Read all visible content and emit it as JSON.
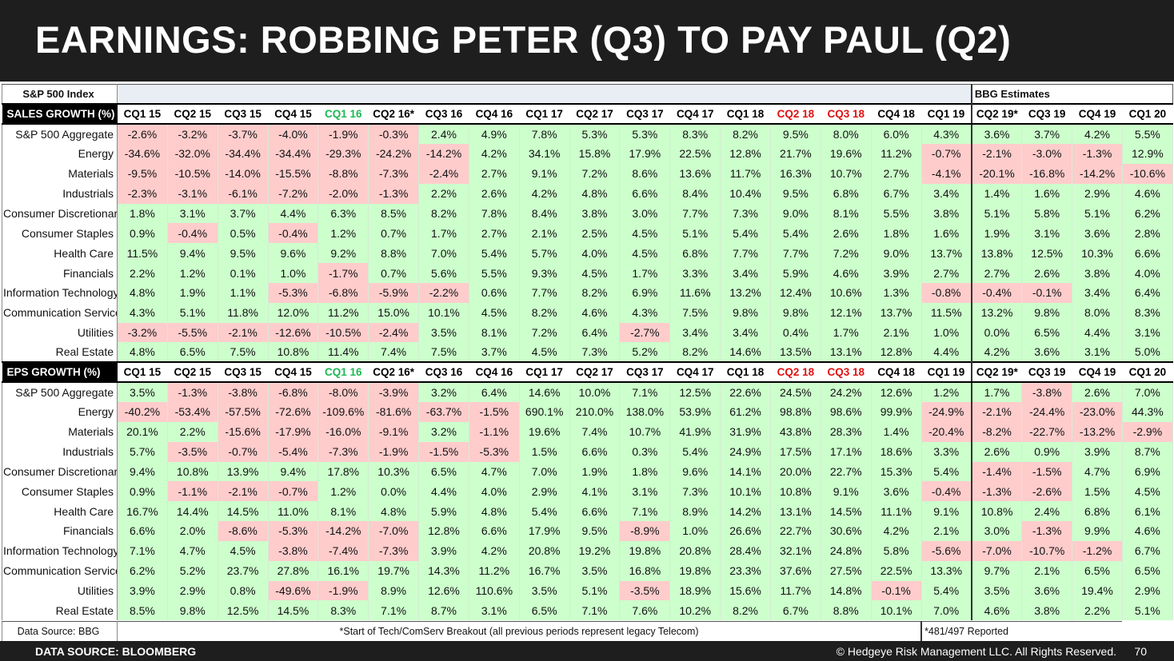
{
  "title": "EARNINGS: ROBBING PETER (Q3) TO PAY PAUL (Q2)",
  "index_label": "S&P 500 Index",
  "bbg_label": "BBG Estimates",
  "colors": {
    "positive": "#ccffcc",
    "negative": "#ffcccc",
    "header_green": "#1db954",
    "header_red": "#e01010"
  },
  "quarters": [
    "CQ1 15",
    "CQ2 15",
    "CQ3 15",
    "CQ4 15",
    "CQ1 16",
    "CQ2 16*",
    "CQ3 16",
    "CQ4 16",
    "CQ1 17",
    "CQ2 17",
    "CQ3 17",
    "CQ4 17",
    "CQ1 18",
    "CQ2 18",
    "CQ3 18",
    "CQ4 18",
    "CQ1 19",
    "CQ2 19*",
    "CQ3 19",
    "CQ4 19",
    "CQ1 20"
  ],
  "quarter_styles": [
    "",
    "",
    "",
    "",
    "g",
    "",
    "",
    "",
    "",
    "",
    "",
    "",
    "",
    "r",
    "r",
    "",
    "",
    "",
    "",
    "",
    ""
  ],
  "sections": [
    {
      "header": "SALES GROWTH (%)",
      "rows": [
        {
          "label": "S&P 500 Aggregate",
          "values": [
            "-2.6%",
            "-3.2%",
            "-3.7%",
            "-4.0%",
            "-1.9%",
            "-0.3%",
            "2.4%",
            "4.9%",
            "7.8%",
            "5.3%",
            "5.3%",
            "8.3%",
            "8.2%",
            "9.5%",
            "8.0%",
            "6.0%",
            "4.3%",
            "3.6%",
            "3.7%",
            "4.2%",
            "5.5%"
          ]
        },
        {
          "label": "Energy",
          "values": [
            "-34.6%",
            "-32.0%",
            "-34.4%",
            "-34.4%",
            "-29.3%",
            "-24.2%",
            "-14.2%",
            "4.2%",
            "34.1%",
            "15.8%",
            "17.9%",
            "22.5%",
            "12.8%",
            "21.7%",
            "19.6%",
            "11.2%",
            "-0.7%",
            "-2.1%",
            "-3.0%",
            "-1.3%",
            "12.9%"
          ]
        },
        {
          "label": "Materials",
          "values": [
            "-9.5%",
            "-10.5%",
            "-14.0%",
            "-15.5%",
            "-8.8%",
            "-7.3%",
            "-2.4%",
            "2.7%",
            "9.1%",
            "7.2%",
            "8.6%",
            "13.6%",
            "11.7%",
            "16.3%",
            "10.7%",
            "2.7%",
            "-4.1%",
            "-20.1%",
            "-16.8%",
            "-14.2%",
            "-10.6%"
          ]
        },
        {
          "label": "Industrials",
          "values": [
            "-2.3%",
            "-3.1%",
            "-6.1%",
            "-7.2%",
            "-2.0%",
            "-1.3%",
            "2.2%",
            "2.6%",
            "4.2%",
            "4.8%",
            "6.6%",
            "8.4%",
            "10.4%",
            "9.5%",
            "6.8%",
            "6.7%",
            "3.4%",
            "1.4%",
            "1.6%",
            "2.9%",
            "4.6%"
          ]
        },
        {
          "label": "Consumer Discretionary",
          "values": [
            "1.8%",
            "3.1%",
            "3.7%",
            "4.4%",
            "6.3%",
            "8.5%",
            "8.2%",
            "7.8%",
            "8.4%",
            "3.8%",
            "3.0%",
            "7.7%",
            "7.3%",
            "9.0%",
            "8.1%",
            "5.5%",
            "3.8%",
            "5.1%",
            "5.8%",
            "5.1%",
            "6.2%"
          ]
        },
        {
          "label": "Consumer Staples",
          "values": [
            "0.9%",
            "-0.4%",
            "0.5%",
            "-0.4%",
            "1.2%",
            "0.7%",
            "1.7%",
            "2.7%",
            "2.1%",
            "2.5%",
            "4.5%",
            "5.1%",
            "5.4%",
            "5.4%",
            "2.6%",
            "1.8%",
            "1.6%",
            "1.9%",
            "3.1%",
            "3.6%",
            "2.8%"
          ]
        },
        {
          "label": "Health Care",
          "values": [
            "11.5%",
            "9.4%",
            "9.5%",
            "9.6%",
            "9.2%",
            "8.8%",
            "7.0%",
            "5.4%",
            "5.7%",
            "4.0%",
            "4.5%",
            "6.8%",
            "7.7%",
            "7.7%",
            "7.2%",
            "9.0%",
            "13.7%",
            "13.8%",
            "12.5%",
            "10.3%",
            "6.6%"
          ]
        },
        {
          "label": "Financials",
          "values": [
            "2.2%",
            "1.2%",
            "0.1%",
            "1.0%",
            "-1.7%",
            "0.7%",
            "5.6%",
            "5.5%",
            "9.3%",
            "4.5%",
            "1.7%",
            "3.3%",
            "3.4%",
            "5.9%",
            "4.6%",
            "3.9%",
            "2.7%",
            "2.7%",
            "2.6%",
            "3.8%",
            "4.0%"
          ]
        },
        {
          "label": "Information Technology",
          "values": [
            "4.8%",
            "1.9%",
            "1.1%",
            "-5.3%",
            "-6.8%",
            "-5.9%",
            "-2.2%",
            "0.6%",
            "7.7%",
            "8.2%",
            "6.9%",
            "11.6%",
            "13.2%",
            "12.4%",
            "10.6%",
            "1.3%",
            "-0.8%",
            "-0.4%",
            "-0.1%",
            "3.4%",
            "6.4%"
          ]
        },
        {
          "label": "Communication Services",
          "values": [
            "4.3%",
            "5.1%",
            "11.8%",
            "12.0%",
            "11.2%",
            "15.0%",
            "10.1%",
            "4.5%",
            "8.2%",
            "4.6%",
            "4.3%",
            "7.5%",
            "9.8%",
            "9.8%",
            "12.1%",
            "13.7%",
            "11.5%",
            "13.2%",
            "9.8%",
            "8.0%",
            "8.3%"
          ]
        },
        {
          "label": "Utilities",
          "values": [
            "-3.2%",
            "-5.5%",
            "-2.1%",
            "-12.6%",
            "-10.5%",
            "-2.4%",
            "3.5%",
            "8.1%",
            "7.2%",
            "6.4%",
            "-2.7%",
            "3.4%",
            "3.4%",
            "0.4%",
            "1.7%",
            "2.1%",
            "1.0%",
            "0.0%",
            "6.5%",
            "4.4%",
            "3.1%"
          ]
        },
        {
          "label": "Real Estate",
          "values": [
            "4.8%",
            "6.5%",
            "7.5%",
            "10.8%",
            "11.4%",
            "7.4%",
            "7.5%",
            "3.7%",
            "4.5%",
            "7.3%",
            "5.2%",
            "8.2%",
            "14.6%",
            "13.5%",
            "13.1%",
            "12.8%",
            "4.4%",
            "4.2%",
            "3.6%",
            "3.1%",
            "5.0%"
          ]
        }
      ]
    },
    {
      "header": "EPS GROWTH (%)",
      "rows": [
        {
          "label": "S&P 500 Aggregate",
          "values": [
            "3.5%",
            "-1.3%",
            "-3.8%",
            "-6.8%",
            "-8.0%",
            "-3.9%",
            "3.2%",
            "6.4%",
            "14.6%",
            "10.0%",
            "7.1%",
            "12.5%",
            "22.6%",
            "24.5%",
            "24.2%",
            "12.6%",
            "1.2%",
            "1.7%",
            "-3.8%",
            "2.6%",
            "7.0%"
          ]
        },
        {
          "label": "Energy",
          "values": [
            "-40.2%",
            "-53.4%",
            "-57.5%",
            "-72.6%",
            "-109.6%",
            "-81.6%",
            "-63.7%",
            "-1.5%",
            "690.1%",
            "210.0%",
            "138.0%",
            "53.9%",
            "61.2%",
            "98.8%",
            "98.6%",
            "99.9%",
            "-24.9%",
            "-2.1%",
            "-24.4%",
            "-23.0%",
            "44.3%"
          ]
        },
        {
          "label": "Materials",
          "values": [
            "20.1%",
            "2.2%",
            "-15.6%",
            "-17.9%",
            "-16.0%",
            "-9.1%",
            "3.2%",
            "-1.1%",
            "19.6%",
            "7.4%",
            "10.7%",
            "41.9%",
            "31.9%",
            "43.8%",
            "28.3%",
            "1.4%",
            "-20.4%",
            "-8.2%",
            "-22.7%",
            "-13.2%",
            "-2.9%"
          ]
        },
        {
          "label": "Industrials",
          "values": [
            "5.7%",
            "-3.5%",
            "-0.7%",
            "-5.4%",
            "-7.3%",
            "-1.9%",
            "-1.5%",
            "-5.3%",
            "1.5%",
            "6.6%",
            "0.3%",
            "5.4%",
            "24.9%",
            "17.5%",
            "17.1%",
            "18.6%",
            "3.3%",
            "2.6%",
            "0.9%",
            "3.9%",
            "8.7%"
          ]
        },
        {
          "label": "Consumer Discretionary",
          "values": [
            "9.4%",
            "10.8%",
            "13.9%",
            "9.4%",
            "17.8%",
            "10.3%",
            "6.5%",
            "4.7%",
            "7.0%",
            "1.9%",
            "1.8%",
            "9.6%",
            "14.1%",
            "20.0%",
            "22.7%",
            "15.3%",
            "5.4%",
            "-1.4%",
            "-1.5%",
            "4.7%",
            "6.9%"
          ]
        },
        {
          "label": "Consumer Staples",
          "values": [
            "0.9%",
            "-1.1%",
            "-2.1%",
            "-0.7%",
            "1.2%",
            "0.0%",
            "4.4%",
            "4.0%",
            "2.9%",
            "4.1%",
            "3.1%",
            "7.3%",
            "10.1%",
            "10.8%",
            "9.1%",
            "3.6%",
            "-0.4%",
            "-1.3%",
            "-2.6%",
            "1.5%",
            "4.5%"
          ]
        },
        {
          "label": "Health Care",
          "values": [
            "16.7%",
            "14.4%",
            "14.5%",
            "11.0%",
            "8.1%",
            "4.8%",
            "5.9%",
            "4.8%",
            "5.4%",
            "6.6%",
            "7.1%",
            "8.9%",
            "14.2%",
            "13.1%",
            "14.5%",
            "11.1%",
            "9.1%",
            "10.8%",
            "2.4%",
            "6.8%",
            "6.1%"
          ]
        },
        {
          "label": "Financials",
          "values": [
            "6.6%",
            "2.0%",
            "-8.6%",
            "-5.3%",
            "-14.2%",
            "-7.0%",
            "12.8%",
            "6.6%",
            "17.9%",
            "9.5%",
            "-8.9%",
            "1.0%",
            "26.6%",
            "22.7%",
            "30.6%",
            "4.2%",
            "2.1%",
            "3.0%",
            "-1.3%",
            "9.9%",
            "4.6%"
          ]
        },
        {
          "label": "Information Technology",
          "values": [
            "7.1%",
            "4.7%",
            "4.5%",
            "-3.8%",
            "-7.4%",
            "-7.3%",
            "3.9%",
            "4.2%",
            "20.8%",
            "19.2%",
            "19.8%",
            "20.8%",
            "28.4%",
            "32.1%",
            "24.8%",
            "5.8%",
            "-5.6%",
            "-7.0%",
            "-10.7%",
            "-1.2%",
            "6.7%"
          ]
        },
        {
          "label": "Communication Services",
          "values": [
            "6.2%",
            "5.2%",
            "23.7%",
            "27.8%",
            "16.1%",
            "19.7%",
            "14.3%",
            "11.2%",
            "16.7%",
            "3.5%",
            "16.8%",
            "19.8%",
            "23.3%",
            "37.6%",
            "27.5%",
            "22.5%",
            "13.3%",
            "9.7%",
            "2.1%",
            "6.5%",
            "6.5%"
          ]
        },
        {
          "label": "Utilities",
          "values": [
            "3.9%",
            "2.9%",
            "0.8%",
            "-49.6%",
            "-1.9%",
            "8.9%",
            "12.6%",
            "110.6%",
            "3.5%",
            "5.1%",
            "-3.5%",
            "18.9%",
            "15.6%",
            "11.7%",
            "14.8%",
            "-0.1%",
            "5.4%",
            "3.5%",
            "3.6%",
            "19.4%",
            "2.9%"
          ]
        },
        {
          "label": "Real Estate",
          "values": [
            "8.5%",
            "9.8%",
            "12.5%",
            "14.5%",
            "8.3%",
            "7.1%",
            "8.7%",
            "3.1%",
            "6.5%",
            "7.1%",
            "7.6%",
            "10.2%",
            "8.2%",
            "6.7%",
            "8.8%",
            "10.1%",
            "7.0%",
            "4.6%",
            "3.8%",
            "2.2%",
            "5.1%"
          ]
        }
      ]
    }
  ],
  "footer": {
    "source": "Data Source: BBG",
    "note": "*Start of Tech/ComServ Breakout (all previous periods represent legacy Telecom)",
    "reported": "*481/497 Reported"
  },
  "bottom": {
    "data_source": "DATA SOURCE: BLOOMBERG",
    "copyright": "© Hedgeye Risk Management LLC. All Rights Reserved.",
    "page": "70"
  }
}
